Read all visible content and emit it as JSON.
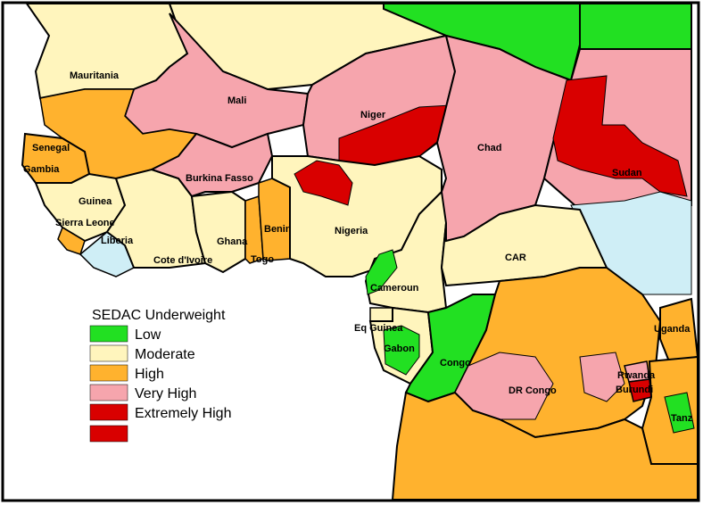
{
  "colors": {
    "low": "#22e022",
    "moderate": "#fff5bd",
    "high": "#ffb22e",
    "very_high": "#f6a5ad",
    "extremely_high": "#d90000",
    "water": "#cfeef6",
    "ocean": "#ffffff",
    "border": "#000000"
  },
  "legend": {
    "title": "SEDAC Underweight",
    "items": [
      {
        "label": "Low",
        "color": "#22e022"
      },
      {
        "label": "Moderate",
        "color": "#fff5bd"
      },
      {
        "label": "High",
        "color": "#ffb22e"
      },
      {
        "label": "Very High",
        "color": "#f6a5ad"
      },
      {
        "label": "Extremely High",
        "color": "#d90000"
      },
      {
        "label": "",
        "color": "#d90000"
      }
    ]
  },
  "countries": {
    "mauritania": "Mauritania",
    "mali": "Mali",
    "niger": "Niger",
    "chad": "Chad",
    "sudan": "Sudan",
    "senegal": "Senegal",
    "gambia": "Gambia",
    "guinea": "Guinea",
    "sierra_leone": "Sierra Leone",
    "liberia": "Liberia",
    "burkina_faso": "Burkina Fasso",
    "cote_divoire": "Cote d'Ivoire",
    "ghana": "Ghana",
    "togo": "Togo",
    "benin": "Benin",
    "nigeria": "Nigeria",
    "car": "CAR",
    "cameroun": "Cameroun",
    "eq_guinea": "Eq Guinea",
    "gabon": "Gabon",
    "congo": "Congo",
    "dr_congo": "DR Congo",
    "uganda": "Uganda",
    "rwanda": "Rwanda",
    "burundi": "Burundi",
    "tanzania": "Tanz"
  }
}
